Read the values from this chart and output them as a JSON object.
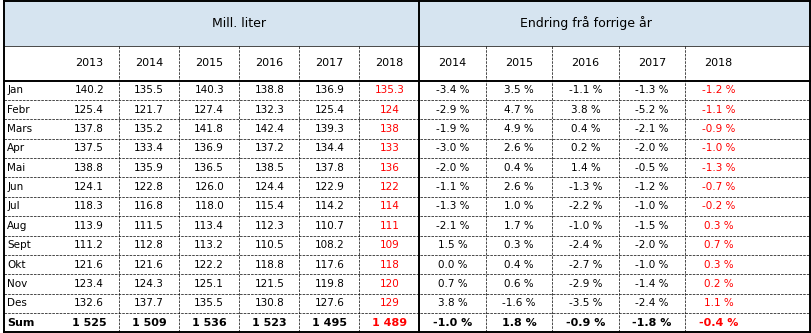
{
  "header1": "Mill. liter",
  "header2": "Endring frå forrige år",
  "left_years": [
    "2013",
    "2014",
    "2015",
    "2016",
    "2017",
    "2018"
  ],
  "right_years": [
    "2014",
    "2015",
    "2016",
    "2017",
    "2018"
  ],
  "row_labels": [
    "Jan",
    "Febr",
    "Mars",
    "Apr",
    "Mai",
    "Jun",
    "Jul",
    "Aug",
    "Sept",
    "Okt",
    "Nov",
    "Des",
    "Sum"
  ],
  "mill_liter_str": [
    [
      "140.2",
      "135.5",
      "140.3",
      "138.8",
      "136.9",
      "135.3"
    ],
    [
      "125.4",
      "121.7",
      "127.4",
      "132.3",
      "125.4",
      "124"
    ],
    [
      "137.8",
      "135.2",
      "141.8",
      "142.4",
      "139.3",
      "138"
    ],
    [
      "137.5",
      "133.4",
      "136.9",
      "137.2",
      "134.4",
      "133"
    ],
    [
      "138.8",
      "135.9",
      "136.5",
      "138.5",
      "137.8",
      "136"
    ],
    [
      "124.1",
      "122.8",
      "126.0",
      "124.4",
      "122.9",
      "122"
    ],
    [
      "118.3",
      "116.8",
      "118.0",
      "115.4",
      "114.2",
      "114"
    ],
    [
      "113.9",
      "111.5",
      "113.4",
      "112.3",
      "110.7",
      "111"
    ],
    [
      "111.2",
      "112.8",
      "113.2",
      "110.5",
      "108.2",
      "109"
    ],
    [
      "121.6",
      "121.6",
      "122.2",
      "118.8",
      "117.6",
      "118"
    ],
    [
      "123.4",
      "124.3",
      "125.1",
      "121.5",
      "119.8",
      "120"
    ],
    [
      "132.6",
      "137.7",
      "135.5",
      "130.8",
      "127.6",
      "129"
    ],
    [
      "1 525",
      "1 509",
      "1 536",
      "1 523",
      "1 495",
      "1 489"
    ]
  ],
  "endring": [
    [
      "-3.4 %",
      "3.5 %",
      "-1.1 %",
      "-1.3 %",
      "-1.2 %"
    ],
    [
      "-2.9 %",
      "4.7 %",
      "3.8 %",
      "-5.2 %",
      "-1.1 %"
    ],
    [
      "-1.9 %",
      "4.9 %",
      "0.4 %",
      "-2.1 %",
      "-0.9 %"
    ],
    [
      "-3.0 %",
      "2.6 %",
      "0.2 %",
      "-2.0 %",
      "-1.0 %"
    ],
    [
      "-2.0 %",
      "0.4 %",
      "1.4 %",
      "-0.5 %",
      "-1.3 %"
    ],
    [
      "-1.1 %",
      "2.6 %",
      "-1.3 %",
      "-1.2 %",
      "-0.7 %"
    ],
    [
      "-1.3 %",
      "1.0 %",
      "-2.2 %",
      "-1.0 %",
      "-0.2 %"
    ],
    [
      "-2.1 %",
      "1.7 %",
      "-1.0 %",
      "-1.5 %",
      "0.3 %"
    ],
    [
      "1.5 %",
      "0.3 %",
      "-2.4 %",
      "-2.0 %",
      "0.7 %"
    ],
    [
      "0.0 %",
      "0.4 %",
      "-2.7 %",
      "-1.0 %",
      "0.3 %"
    ],
    [
      "0.7 %",
      "0.6 %",
      "-2.9 %",
      "-1.4 %",
      "0.2 %"
    ],
    [
      "3.8 %",
      "-1.6 %",
      "-3.5 %",
      "-2.4 %",
      "1.1 %"
    ],
    [
      "-1.0 %",
      "1.8 %",
      "-0.9 %",
      "-1.8 %",
      "-0.4 %"
    ]
  ],
  "black_color": "#000000",
  "red_color": "#FF0000",
  "header_bg_left": "#D6E4F0",
  "header_bg_right": "#D6E4F0",
  "bg_color": "#FFFFFF"
}
